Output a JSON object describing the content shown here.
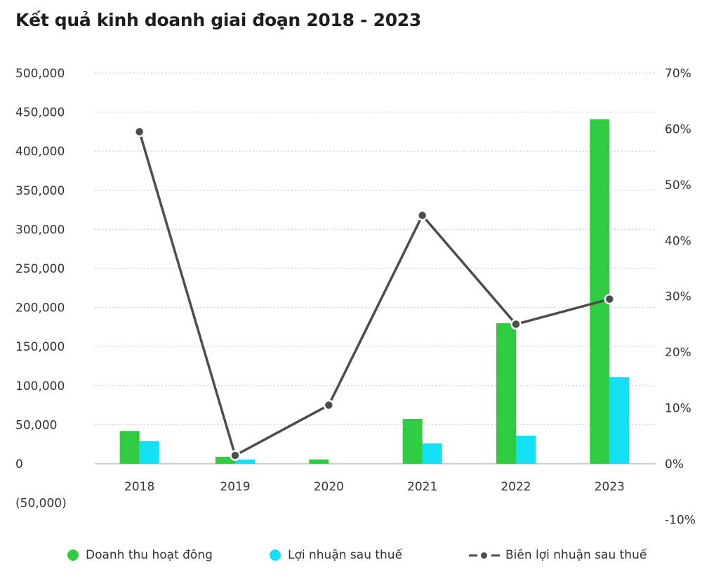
{
  "title": "Kết quả kinh doanh giai đoạn 2018 - 2023",
  "chart_data": {
    "type": "bar",
    "categories": [
      "2018",
      "2019",
      "2020",
      "2021",
      "2022",
      "2023"
    ],
    "series": [
      {
        "name": "Doanh thu hoạt đông",
        "type": "bar",
        "axis": "left",
        "color": "#2ecc40",
        "values": [
          42000,
          9000,
          5500,
          57500,
          180000,
          441000
        ]
      },
      {
        "name": "Lợi nhuận sau thuế",
        "type": "bar",
        "axis": "left",
        "color": "#12e0f5",
        "values": [
          29000,
          5500,
          0,
          26000,
          36000,
          111000
        ]
      },
      {
        "name": "Biên lợi nhuận sau thuế",
        "type": "line",
        "axis": "right",
        "color": "#4d4d4d",
        "values": [
          59.5,
          1.5,
          10.5,
          44.5,
          25,
          29.5
        ]
      }
    ],
    "left_axis": {
      "ylim": [
        -50000,
        500000
      ],
      "ticks": [
        "(50,000)",
        "0",
        "50,000",
        "100,000",
        "150,000",
        "200,000",
        "250,000",
        "300,000",
        "350,000",
        "400,000",
        "450,000",
        "500,000"
      ]
    },
    "right_axis": {
      "ylim": [
        -10,
        70
      ],
      "ticks": [
        "-10%",
        "0%",
        "10%",
        "20%",
        "30%",
        "40%",
        "50%",
        "60%",
        "70%"
      ]
    },
    "grid": true,
    "legend_position": "bottom"
  }
}
